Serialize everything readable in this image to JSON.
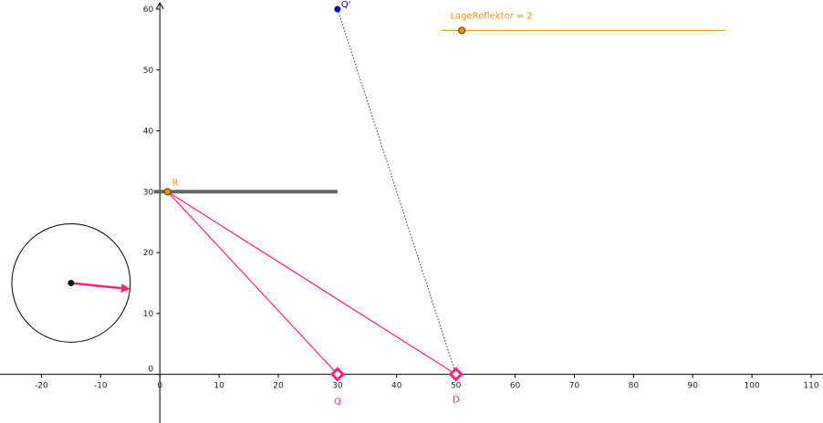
{
  "view": {
    "x_range": [
      -27,
      112
    ],
    "y_range": [
      -8,
      61.5
    ],
    "x_ticks": [
      -20,
      -10,
      0,
      10,
      20,
      30,
      40,
      50,
      60,
      70,
      80,
      90,
      100,
      110
    ],
    "y_ticks": [
      0,
      10,
      20,
      30,
      40,
      50,
      60
    ]
  },
  "colors": {
    "axis": "#000000",
    "reflector": "#666666",
    "orange": "#e69500",
    "blue": "#0000cc",
    "pink": "#ff2277",
    "circle": "#000000"
  },
  "slider": {
    "label": "LageReflektor = 2",
    "track_start": [
      47.5,
      56.5
    ],
    "track_end": [
      95.5,
      56.5
    ],
    "handle": [
      51,
      56.5
    ]
  },
  "points": {
    "R": {
      "label": "R",
      "x": 1.3,
      "y": 30
    },
    "Q_prime": {
      "label": "Q'",
      "x": 30,
      "y": 60
    },
    "Q": {
      "label": "Q",
      "x": 30,
      "y": 0
    },
    "D": {
      "label": "D",
      "x": 50,
      "y": 0
    }
  },
  "reflector": {
    "from": [
      -1,
      30
    ],
    "to": [
      30,
      30
    ]
  },
  "rays": [
    {
      "from": "R",
      "to": "Q"
    },
    {
      "from": "R",
      "to": "D"
    }
  ],
  "dotted": {
    "from": "Q_prime",
    "to": "D"
  },
  "circle": {
    "center": [
      -15,
      15
    ],
    "radius": 10,
    "arrow_to": [
      -5,
      14
    ]
  }
}
